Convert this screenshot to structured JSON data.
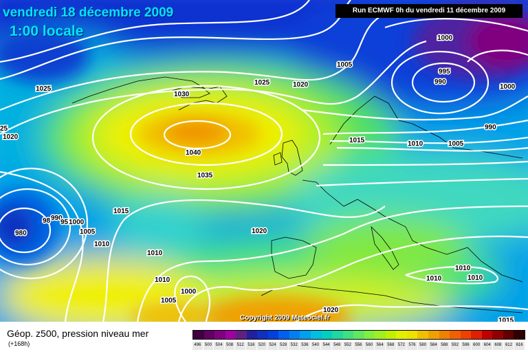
{
  "header": {
    "date": "vendredi 18 décembre 2009",
    "time": "1:00 locale",
    "run": "Run ECMWF 0h du vendredi 11 décembre 2009"
  },
  "map": {
    "copyright": "Copyright 2009 Meteociel.fr",
    "isobar_labels": [
      "1025",
      "1030",
      "25",
      "1020",
      "1025",
      "1020",
      "1040",
      "1035",
      "1005",
      "1000",
      "995",
      "990",
      "1000",
      "990",
      "1015",
      "1010",
      "1005",
      "1015",
      "1020",
      "98",
      "990",
      "95",
      "1000",
      "980",
      "1005",
      "1010",
      "1010",
      "1010",
      "1000",
      "1005",
      "1020",
      "1010",
      "1010",
      "1010",
      "1015"
    ]
  },
  "legend": {
    "title": "Géop. z500, pression niveau mer",
    "step": "(+168h)",
    "scale_values": [
      "496",
      "500",
      "504",
      "508",
      "512",
      "516",
      "520",
      "524",
      "528",
      "532",
      "536",
      "540",
      "544",
      "548",
      "552",
      "556",
      "560",
      "564",
      "568",
      "572",
      "576",
      "580",
      "584",
      "588",
      "592",
      "596",
      "600",
      "604",
      "608",
      "612",
      "616"
    ],
    "scale_colors": [
      "#400040",
      "#600060",
      "#800080",
      "#a000a0",
      "#602080",
      "#2020a0",
      "#1030c0",
      "#0040e0",
      "#0060f0",
      "#0080f0",
      "#00a0f0",
      "#00c0e0",
      "#00d0c0",
      "#20d8a0",
      "#40e080",
      "#60e860",
      "#80f040",
      "#a0f020",
      "#c0f000",
      "#e0f000",
      "#f0e000",
      "#f0c000",
      "#f0a000",
      "#f08000",
      "#f06000",
      "#f04000",
      "#e02000",
      "#c00000",
      "#900000",
      "#600000",
      "#300000"
    ]
  }
}
